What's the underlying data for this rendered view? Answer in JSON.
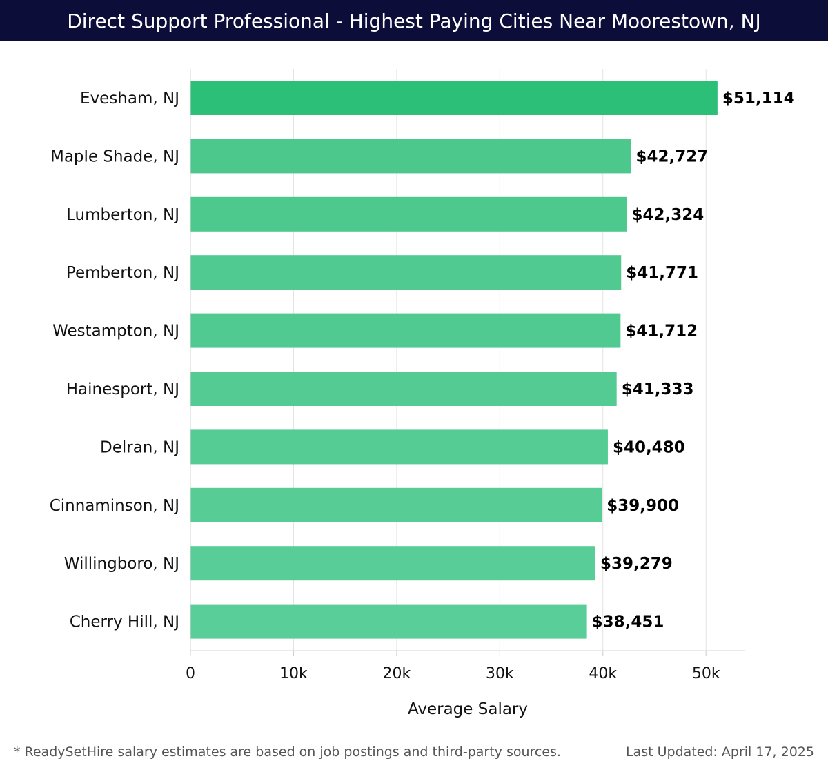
{
  "header": {
    "title": "Direct Support Professional - Highest Paying Cities Near Moorestown, NJ"
  },
  "footer": {
    "note": "* ReadySetHire salary estimates are based on job postings and third-party sources.",
    "updated": "Last Updated: April 17, 2025"
  },
  "colors": {
    "header_bg": "#0d0d3a",
    "top_bar": "#2bbf78",
    "bar_from": "#4cc88d",
    "bar_to": "#5ace98",
    "grid": "#e3e3e3"
  },
  "chart_data": {
    "type": "bar",
    "orientation": "horizontal",
    "categories": [
      "Evesham, NJ",
      "Maple Shade, NJ",
      "Lumberton, NJ",
      "Pemberton, NJ",
      "Westampton, NJ",
      "Hainesport, NJ",
      "Delran, NJ",
      "Cinnaminson, NJ",
      "Willingboro, NJ",
      "Cherry Hill, NJ"
    ],
    "values": [
      51114,
      42727,
      42324,
      41771,
      41712,
      41333,
      40480,
      39900,
      39279,
      38451
    ],
    "value_labels": [
      "$51,114",
      "$42,727",
      "$42,324",
      "$41,771",
      "$41,712",
      "$41,333",
      "$40,480",
      "$39,900",
      "$39,279",
      "$38,451"
    ],
    "xlabel": "Average Salary",
    "ylabel": "",
    "xlim": [
      0,
      53800
    ],
    "xticks": [
      0,
      10000,
      20000,
      30000,
      40000,
      50000
    ],
    "xtick_labels": [
      "0",
      "10k",
      "20k",
      "30k",
      "40k",
      "50k"
    ],
    "grid": true
  }
}
